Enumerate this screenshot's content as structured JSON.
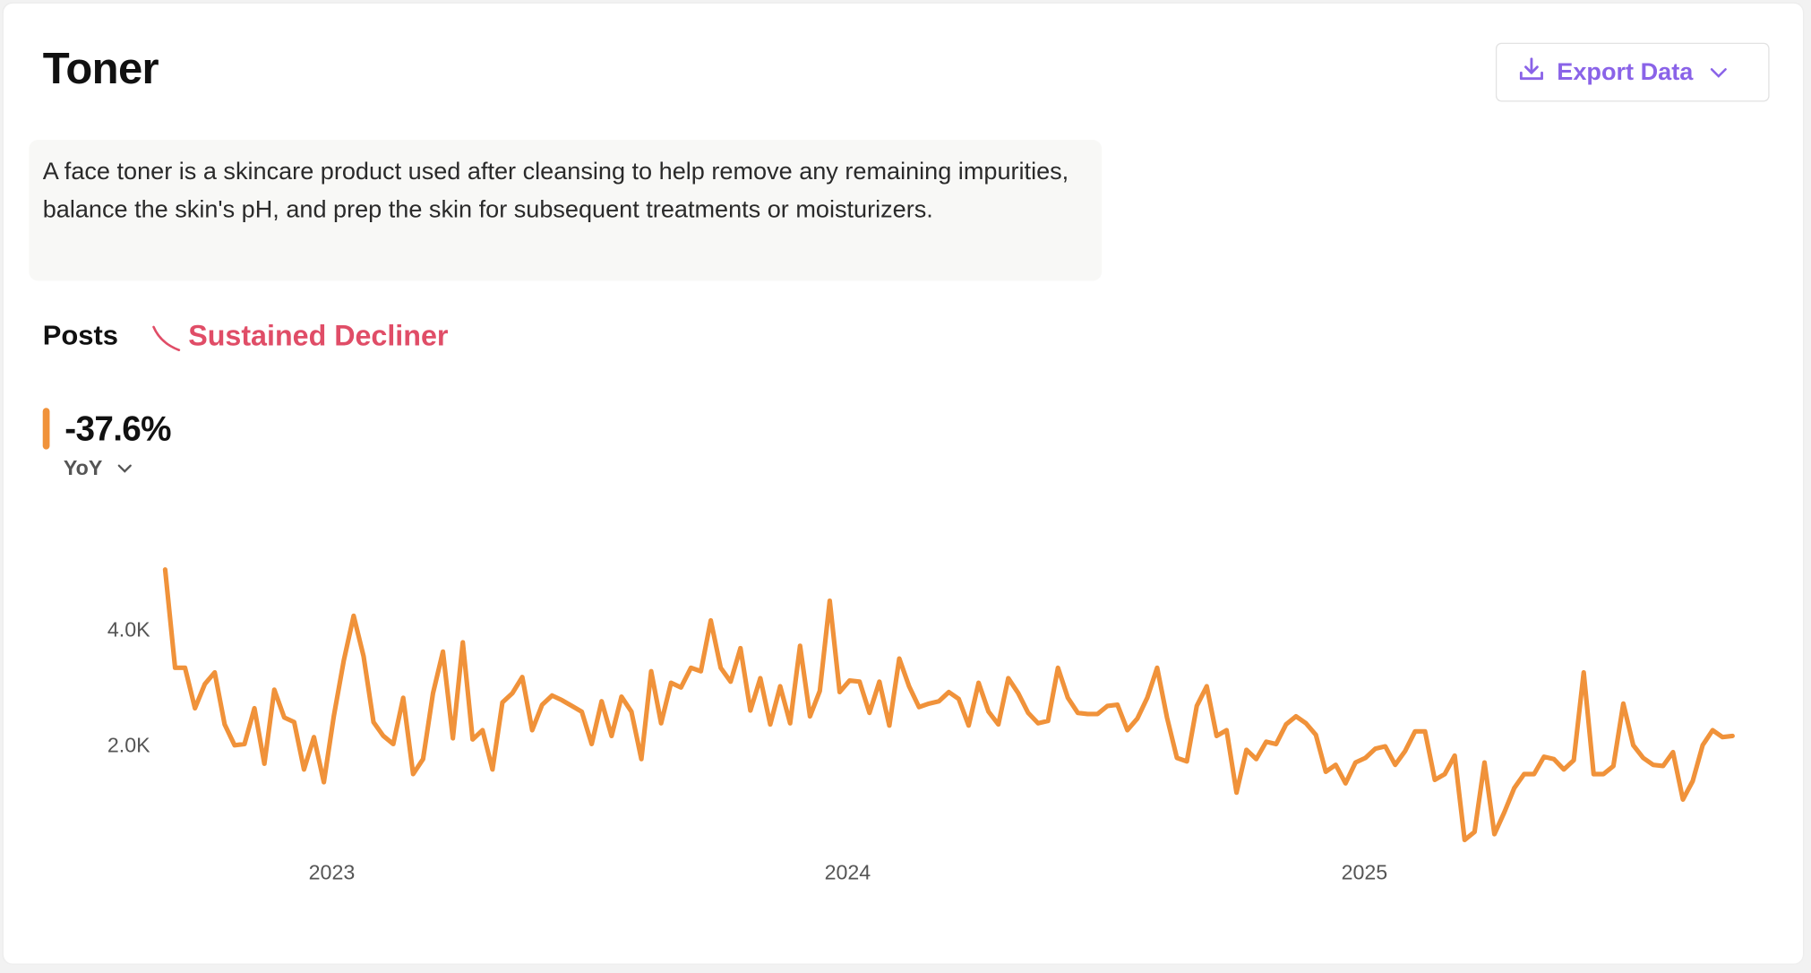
{
  "header": {
    "title": "Toner",
    "export_label": "Export Data"
  },
  "description": "A face toner is a skincare product used after cleansing to help remove any remaining impurities, balance the skin's pH, and prep the skin for subsequent treatments or moisturizers.",
  "metric": {
    "label": "Posts",
    "trend_label": "Sustained Decliner",
    "trend_color": "#e04d67",
    "value": "-37.6%",
    "period": "YoY",
    "accent": "#f0923a"
  },
  "chart_data": {
    "type": "line",
    "title": "",
    "xlabel": "",
    "ylabel": "Posts",
    "ylim": [
      0,
      5100
    ],
    "y_ticks": [
      {
        "value": 2000,
        "label": "2.0K"
      },
      {
        "value": 4000,
        "label": "4.0K"
      }
    ],
    "x_ticks": [
      {
        "index": 16.8,
        "label": "2023"
      },
      {
        "index": 68.8,
        "label": "2024"
      },
      {
        "index": 120.9,
        "label": "2025"
      }
    ],
    "series": [
      {
        "name": "Posts",
        "color": "#f0923a",
        "values": [
          5040,
          3340,
          3340,
          2640,
          3060,
          3260,
          2360,
          2000,
          2020,
          2640,
          1680,
          2960,
          2480,
          2400,
          1580,
          2140,
          1360,
          2500,
          3460,
          4240,
          3540,
          2400,
          2160,
          2020,
          2820,
          1500,
          1760,
          2900,
          3620,
          2120,
          3780,
          2100,
          2260,
          1580,
          2740,
          2900,
          3180,
          2260,
          2700,
          2860,
          2780,
          2680,
          2580,
          2020,
          2760,
          2160,
          2840,
          2580,
          1760,
          3280,
          2380,
          3080,
          3000,
          3340,
          3280,
          4160,
          3340,
          3100,
          3680,
          2600,
          3160,
          2360,
          3020,
          2380,
          3720,
          2500,
          2940,
          4500,
          2920,
          3120,
          3100,
          2560,
          3100,
          2340,
          3500,
          3020,
          2660,
          2720,
          2760,
          2920,
          2800,
          2340,
          3080,
          2580,
          2360,
          3160,
          2900,
          2560,
          2380,
          2420,
          3340,
          2820,
          2560,
          2540,
          2540,
          2680,
          2700,
          2260,
          2460,
          2820,
          3340,
          2480,
          1780,
          1720,
          2680,
          3020,
          2160,
          2260,
          1180,
          1920,
          1760,
          2060,
          2020,
          2360,
          2500,
          2380,
          2180,
          1540,
          1660,
          1340,
          1700,
          1780,
          1940,
          1980,
          1660,
          1900,
          2240,
          2240,
          1400,
          1500,
          1820,
          360,
          500,
          1700,
          460,
          840,
          1260,
          1500,
          1500,
          1800,
          1760,
          1580,
          1740,
          3260,
          1500,
          1500,
          1640,
          2720,
          2000,
          1780,
          1660,
          1640,
          1880,
          1060,
          1380,
          2000,
          2260,
          2140,
          2160
        ]
      }
    ]
  }
}
